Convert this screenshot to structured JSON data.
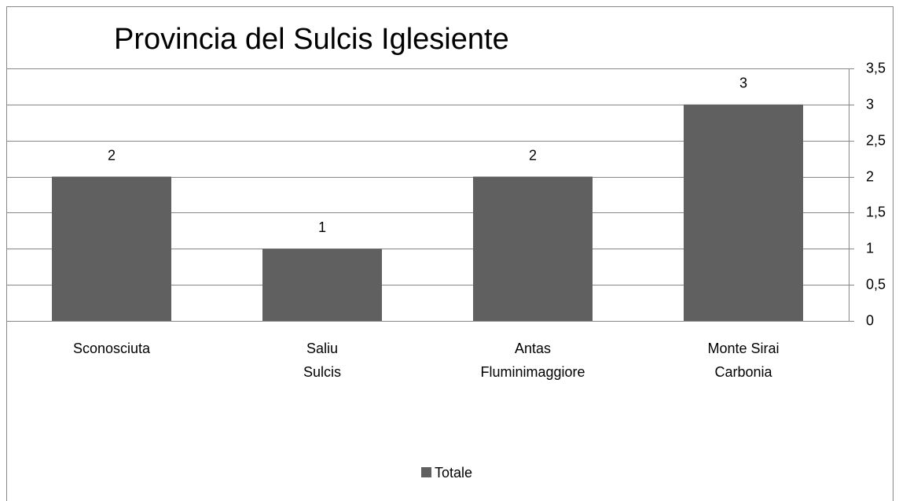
{
  "chart_data": {
    "type": "bar",
    "title": "Provincia del Sulcis Iglesiente",
    "categories": [
      "Sconosciuta",
      "Saliu\nSulcis",
      "Antas\nFluminimaggiore",
      "Monte Sirai\nCarbonia"
    ],
    "series": [
      {
        "name": "Totale",
        "color": "#606060",
        "values": [
          2,
          1,
          2,
          3
        ]
      }
    ],
    "ylim": [
      0,
      3.5
    ],
    "yticks": [
      0,
      {
        "value": 0.5,
        "label": "0,5"
      },
      1,
      {
        "value": 1.5,
        "label": "1,5"
      },
      2,
      {
        "value": 2.5,
        "label": "2,5"
      },
      3,
      {
        "value": 3.5,
        "label": "3,5"
      }
    ],
    "y_axis_side": "right",
    "grid": true,
    "legend": "bottom"
  }
}
